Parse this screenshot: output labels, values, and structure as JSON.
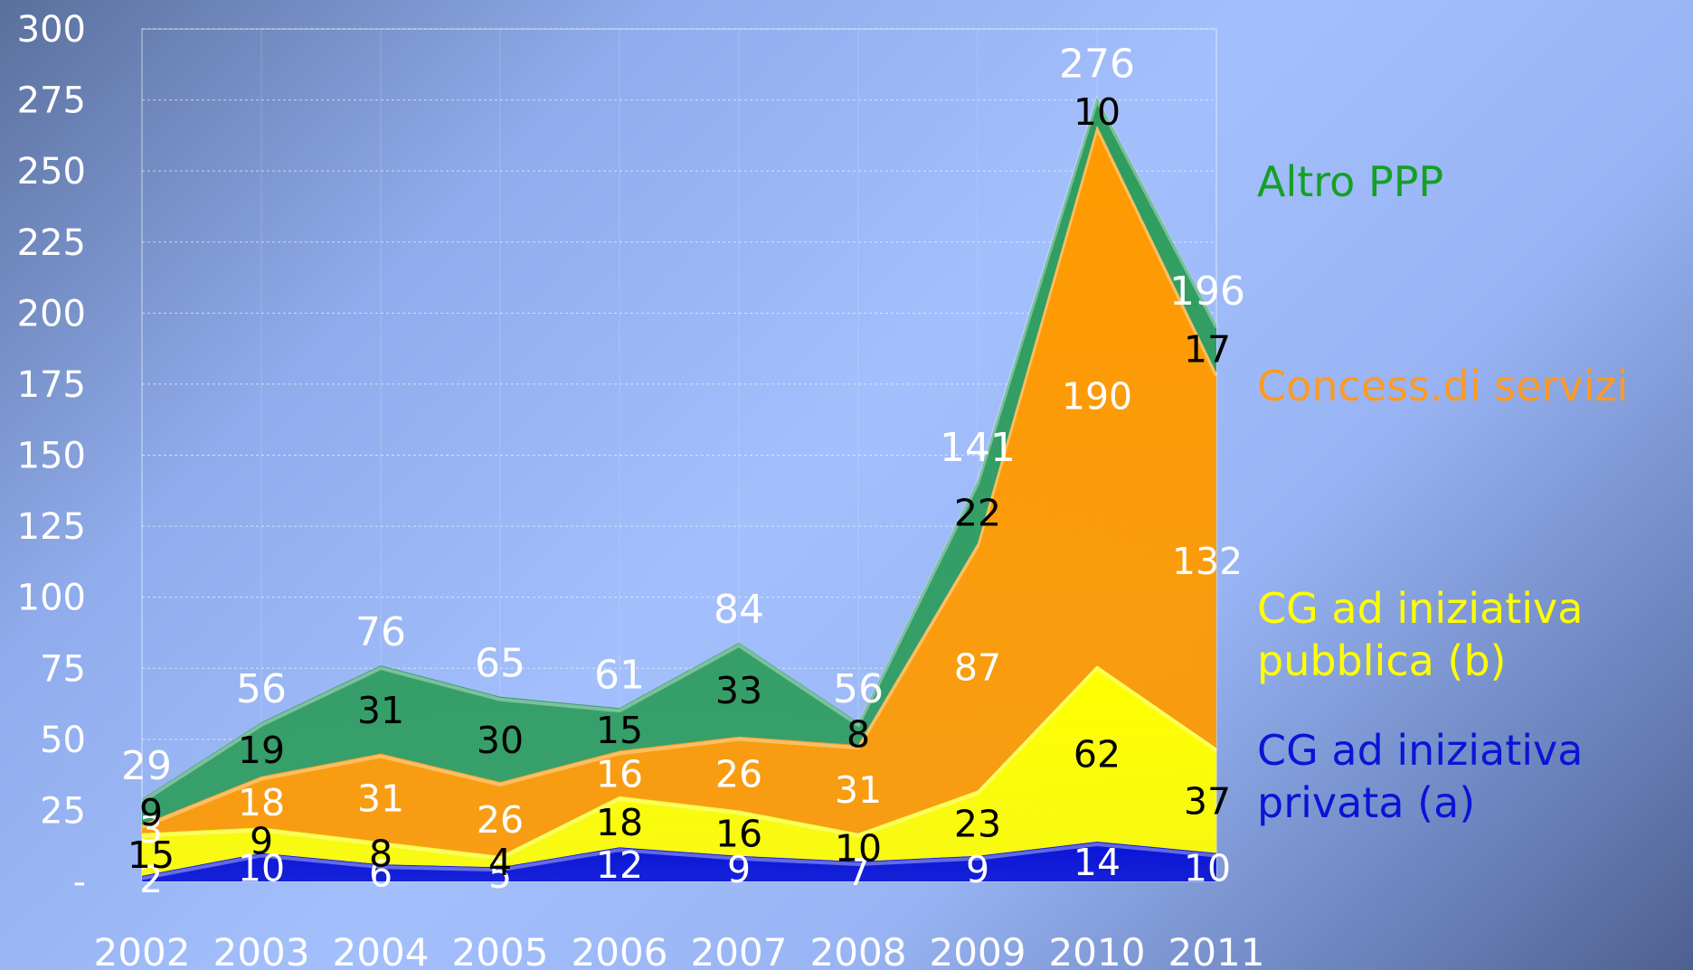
{
  "chart_data": {
    "type": "area",
    "stacked": true,
    "categories": [
      "2002",
      "2003",
      "2004",
      "2005",
      "2006",
      "2007",
      "2008",
      "2009",
      "2010",
      "2011"
    ],
    "series": [
      {
        "name": "CG ad iniziativa privata (a)",
        "color": "#0a14d6",
        "values": [
          2,
          10,
          6,
          5,
          12,
          9,
          7,
          9,
          14,
          10
        ]
      },
      {
        "name": "CG ad iniziativa pubblica (b)",
        "color": "#ffff00",
        "values": [
          15,
          9,
          8,
          4,
          18,
          16,
          10,
          23,
          62,
          37
        ]
      },
      {
        "name": "Concess.di servizi",
        "color": "#ff9a00",
        "values": [
          3,
          18,
          31,
          26,
          16,
          26,
          31,
          87,
          190,
          132
        ]
      },
      {
        "name": "Altro PPP",
        "color": "#2f9d5f",
        "values": [
          9,
          19,
          31,
          30,
          15,
          33,
          8,
          22,
          10,
          17
        ]
      }
    ],
    "totals": [
      29,
      56,
      76,
      65,
      61,
      84,
      56,
      141,
      276,
      196
    ],
    "ylim": [
      0,
      300
    ],
    "yticks": [
      "-",
      "25",
      "50",
      "75",
      "100",
      "125",
      "150",
      "175",
      "200",
      "225",
      "250",
      "275",
      "300"
    ],
    "grid": true,
    "legend": "right",
    "legend_entries": [
      {
        "line1": "Altro PPP",
        "line2": "",
        "color": "#14a024"
      },
      {
        "line1": "Concess.di servizi",
        "line2": "",
        "color": "#ff9a22"
      },
      {
        "line1": "CG ad iniziativa",
        "line2": "pubblica (b)",
        "color": "#ffff00"
      },
      {
        "line1": "CG ad iniziativa",
        "line2": "privata (a)",
        "color": "#0a14d6"
      }
    ],
    "label_colors": [
      "#ffffff",
      "#000000",
      "#ffffff",
      "#000000"
    ]
  }
}
